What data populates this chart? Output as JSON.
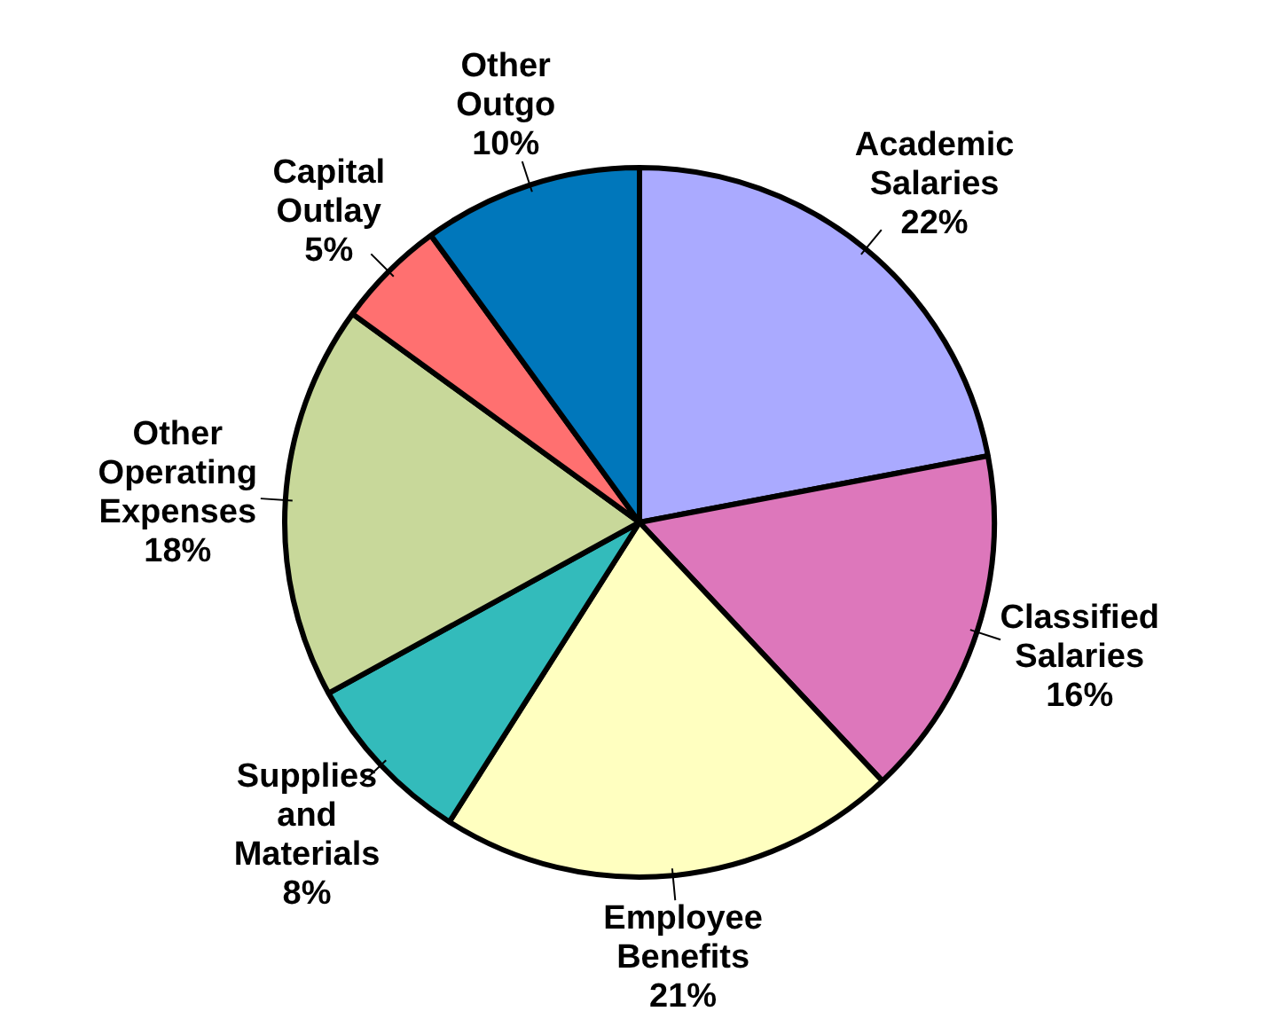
{
  "chart_data": {
    "type": "pie",
    "categories": [
      "Academic Salaries",
      "Classified Salaries",
      "Employee Benefits",
      "Supplies and Materials",
      "Other Operating Expenses",
      "Capital Outlay",
      "Other Outgo"
    ],
    "values": [
      22,
      16,
      21,
      8,
      18,
      5,
      10
    ],
    "colors": [
      "#aaaaff",
      "#dd77bb",
      "#ffffc0",
      "#33bbbb",
      "#c8d89a",
      "#ff7070",
      "#0077bb"
    ],
    "value_labels": [
      "22%",
      "16%",
      "21%",
      "8%",
      "18%",
      "5%",
      "10%"
    ],
    "legend": false
  }
}
